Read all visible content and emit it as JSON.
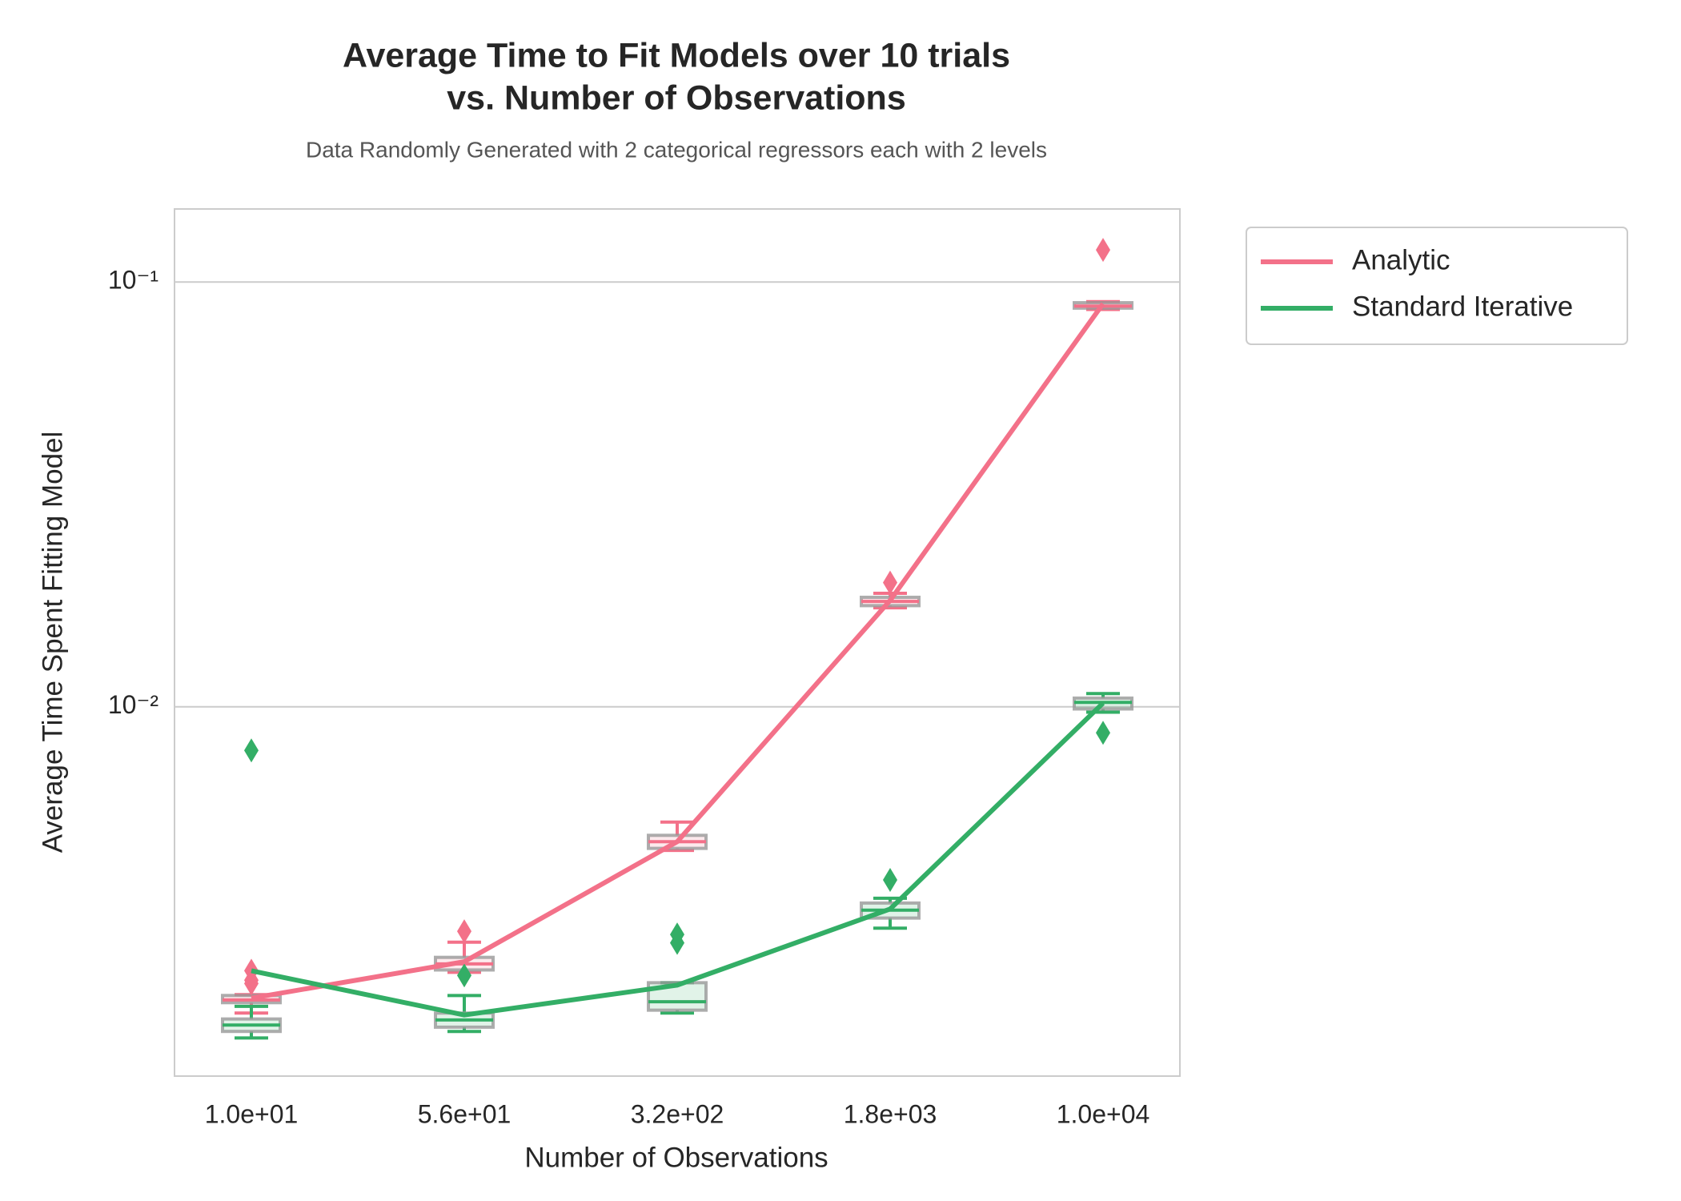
{
  "chart_data": {
    "type": "line-box",
    "title": [
      "Average Time to Fit Models over 10 trials",
      "vs. Number of Observations"
    ],
    "subtitle": "Data Randomly Generated with 2 categorical regressors each with 2 levels",
    "x_label": "Number of Observations",
    "y_label": "Average Time Spent Fitting Model",
    "categories": [
      "1.0e+01",
      "5.6e+01",
      "3.2e+02",
      "1.8e+03",
      "1.0e+04"
    ],
    "y_scale": "log",
    "ylim": [
      0.00135,
      0.1486
    ],
    "yticks": [
      {
        "value": 0.01,
        "label": "10⁻²"
      },
      {
        "value": 0.1,
        "label": "10⁻¹"
      }
    ],
    "grid": true,
    "legend": "outside-upper-right",
    "series": [
      {
        "name": "Analytic",
        "color": "#f37189",
        "values": [
          0.00206,
          0.00251,
          0.00481,
          0.0178,
          0.0889
        ],
        "boxes": [
          {
            "whislo": 0.0019,
            "q1": 0.00201,
            "med": 0.00204,
            "q3": 0.00209,
            "whishi": 0.0021,
            "fliers": [
              0.00239,
              0.00227,
              0.00223
            ]
          },
          {
            "whislo": 0.00237,
            "q1": 0.0024,
            "med": 0.00248,
            "q3": 0.00257,
            "whishi": 0.00279,
            "fliers": [
              0.00296
            ]
          },
          {
            "whislo": 0.00459,
            "q1": 0.00464,
            "med": 0.00481,
            "q3": 0.00498,
            "whishi": 0.00535,
            "fliers": []
          },
          {
            "whislo": 0.0171,
            "q1": 0.0173,
            "med": 0.0177,
            "q3": 0.0181,
            "whishi": 0.0185,
            "fliers": [
              0.0196
            ]
          },
          {
            "whislo": 0.0862,
            "q1": 0.0868,
            "med": 0.0878,
            "q3": 0.0894,
            "whishi": 0.0899,
            "fliers": [
              0.119
            ]
          }
        ]
      },
      {
        "name": "Standard Iterative",
        "color": "#33ae66",
        "values": [
          0.00239,
          0.00188,
          0.00221,
          0.00334,
          0.0102
        ],
        "boxes": [
          {
            "whislo": 0.00166,
            "q1": 0.00172,
            "med": 0.00178,
            "q3": 0.00184,
            "whishi": 0.00197,
            "fliers": [
              0.00789
            ]
          },
          {
            "whislo": 0.00172,
            "q1": 0.00176,
            "med": 0.00183,
            "q3": 0.0019,
            "whishi": 0.00209,
            "fliers": [
              0.00233
            ]
          },
          {
            "whislo": 0.0019,
            "q1": 0.00193,
            "med": 0.00202,
            "q3": 0.00224,
            "whishi": 0.00224,
            "fliers": [
              0.00291,
              0.00278
            ]
          },
          {
            "whislo": 0.00301,
            "q1": 0.00318,
            "med": 0.00332,
            "q3": 0.00345,
            "whishi": 0.00354,
            "fliers": [
              0.00391
            ]
          },
          {
            "whislo": 0.00971,
            "q1": 0.00988,
            "med": 0.01024,
            "q3": 0.01048,
            "whishi": 0.01074,
            "fliers": [
              0.00868
            ]
          }
        ]
      }
    ]
  }
}
